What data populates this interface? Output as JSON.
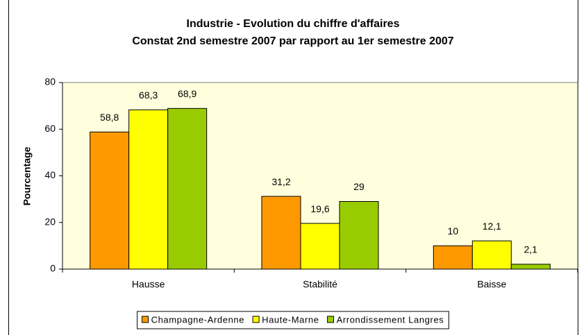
{
  "chart_data": {
    "type": "bar",
    "title": "Industrie - Evolution du chiffre d'affaires",
    "subtitle": "Constat 2nd semestre 2007 par rapport au 1er semestre 2007",
    "y_label": "Pourcentage",
    "categories": [
      "Hausse",
      "Stabilité",
      "Baisse"
    ],
    "series": [
      {
        "name": "Champagne-Ardenne",
        "color": "#ff9900",
        "values": [
          58.8,
          31.2,
          10
        ],
        "value_labels": [
          "58,8",
          "31,2",
          "10"
        ]
      },
      {
        "name": "Haute-Marne",
        "color": "#ffff00",
        "values": [
          68.3,
          19.6,
          12.1
        ],
        "value_labels": [
          "68,3",
          "19,6",
          "12,1"
        ]
      },
      {
        "name": "Arrondissement Langres",
        "color": "#99cc00",
        "values": [
          68.9,
          29,
          2.1
        ],
        "value_labels": [
          "68,9",
          "29",
          "2,1"
        ]
      }
    ],
    "ylim": [
      0,
      80
    ],
    "yticks": [
      0,
      20,
      40,
      60,
      80
    ],
    "grid": false,
    "legend": "bottom",
    "plot_background": "#ffffdd"
  }
}
